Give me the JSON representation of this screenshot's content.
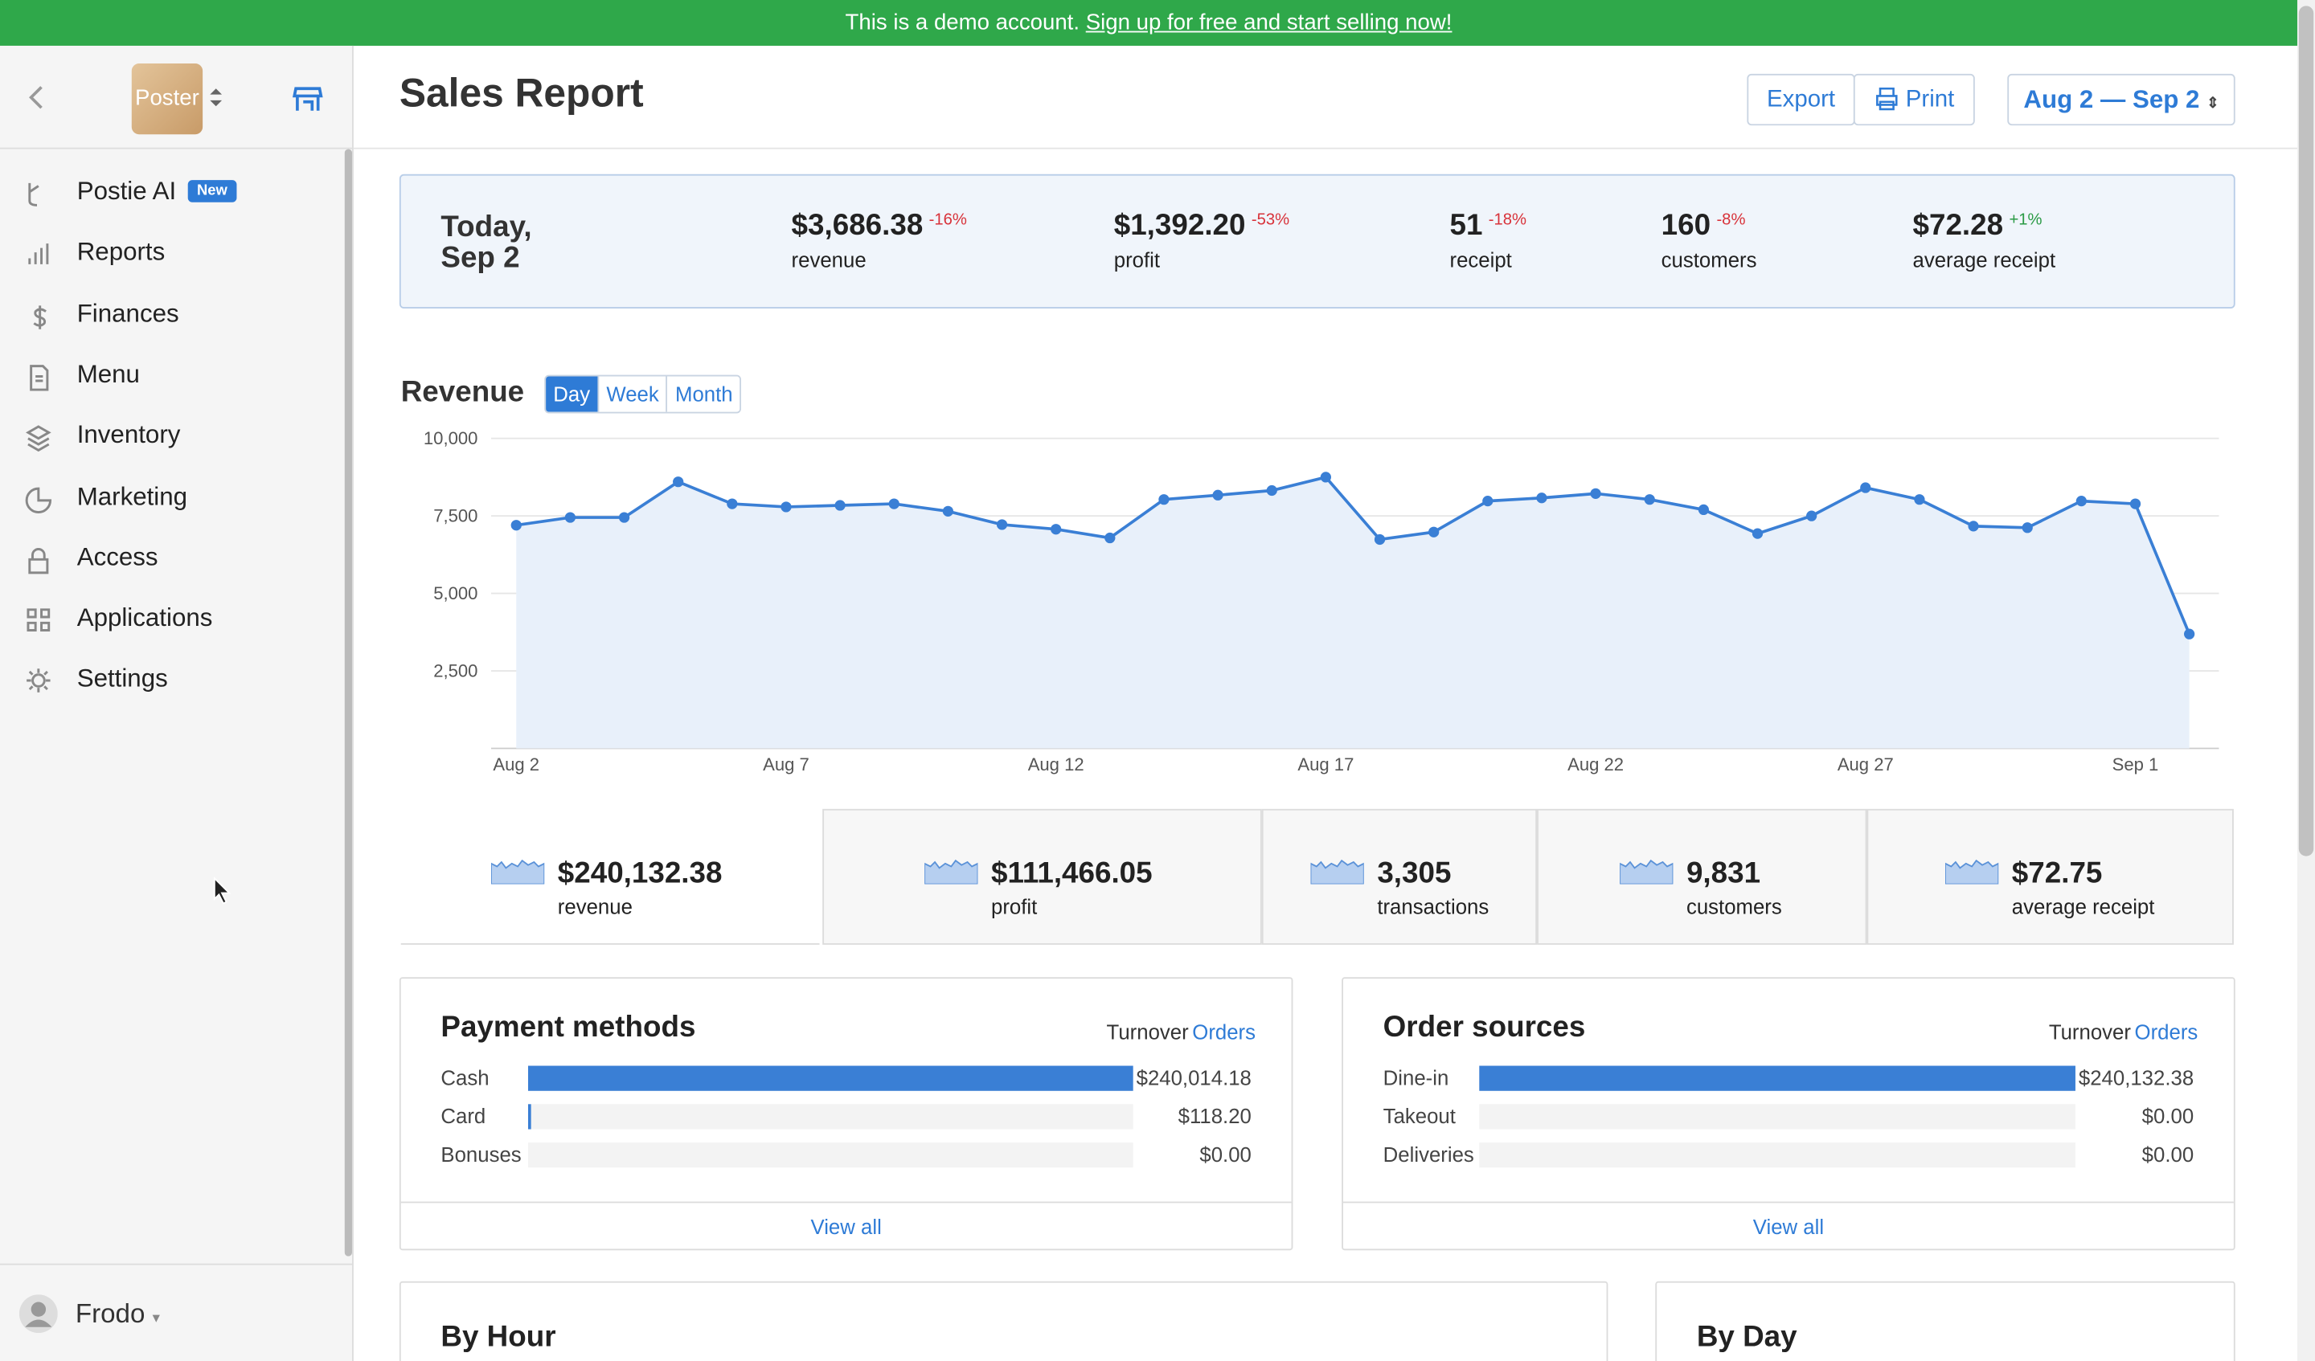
{
  "banner": {
    "text": "This is a demo account.",
    "link": "Sign up for free and start selling now!"
  },
  "sidebar": {
    "logo": "Poster",
    "menu": [
      {
        "label": "Postie AI",
        "badge": "New"
      },
      {
        "label": "Reports"
      },
      {
        "label": "Finances"
      },
      {
        "label": "Menu"
      },
      {
        "label": "Inventory"
      },
      {
        "label": "Marketing"
      },
      {
        "label": "Access"
      },
      {
        "label": "Applications"
      },
      {
        "label": "Settings"
      }
    ],
    "user": "Frodo"
  },
  "header": {
    "title": "Sales Report",
    "buttons": [
      "Export",
      "Print"
    ],
    "date_range": "Aug 2 — Sep 2"
  },
  "today": {
    "label": "Today,",
    "date": "Sep 2",
    "metrics": [
      {
        "value": "$3,686.38",
        "change": "-16%",
        "label": "revenue"
      },
      {
        "value": "$1,392.20",
        "change": "-53%",
        "label": "profit"
      },
      {
        "value": "51",
        "change": "-18%",
        "label": "receipt"
      },
      {
        "value": "160",
        "change": "-8%",
        "label": "customers"
      },
      {
        "value": "$72.28",
        "change": "+1%",
        "label": "average receipt"
      }
    ]
  },
  "chart_data": {
    "type": "line",
    "title": "Revenue",
    "tabs": [
      "Day",
      "Week",
      "Month"
    ],
    "categories": [
      "Aug 2",
      null,
      null,
      null,
      null,
      "Aug 7",
      null,
      null,
      null,
      null,
      "Aug 12",
      null,
      null,
      null,
      null,
      "Aug 17",
      null,
      null,
      null,
      null,
      "Aug 22",
      null,
      null,
      null,
      null,
      "Aug 27",
      null,
      null,
      null,
      null,
      "Sep 1",
      null
    ],
    "values": [
      7200,
      7450,
      7450,
      8600,
      7890,
      7790,
      7840,
      7890,
      7650,
      7220,
      7070,
      6790,
      8030,
      8170,
      8320,
      8750,
      6740,
      6980,
      7980,
      8080,
      8220,
      8030,
      7700,
      6930,
      7500,
      8410,
      8030,
      7170,
      7120,
      7980,
      7890,
      3690
    ],
    "color": "#3a7fd5",
    "ylim": [
      0,
      10000
    ],
    "yticks": [
      {
        "value": 2500,
        "label": "2,500"
      },
      {
        "value": 5000,
        "label": "5,000"
      },
      {
        "value": 7500,
        "label": "7,500"
      },
      {
        "value": 10000,
        "label": "10,000"
      }
    ],
    "grid": true
  },
  "totals": [
    {
      "value": "$240,132.38",
      "label": "revenue"
    },
    {
      "value": "$111,466.05",
      "label": "profit"
    },
    {
      "value": "3,305",
      "label": "transactions"
    },
    {
      "value": "9,831",
      "label": "customers"
    },
    {
      "value": "$72.75",
      "label": "average receipt"
    }
  ],
  "payment_methods": {
    "title": "Payment methods",
    "toggle": [
      "Turnover",
      "Orders"
    ],
    "categories": [
      "Cash",
      "Card",
      "Bonuses"
    ],
    "values": [
      240014.18,
      118.2,
      0
    ],
    "value_labels": [
      "$240,014.18",
      "$118.20",
      "$0.00"
    ],
    "link": "View all"
  },
  "order_sources": {
    "title": "Order sources",
    "toggle": [
      "Turnover",
      "Orders"
    ],
    "categories": [
      "Dine-in",
      "Takeout",
      "Deliveries"
    ],
    "values": [
      240132.38,
      0,
      0
    ],
    "value_labels": [
      "$240,132.38",
      "$0.00",
      "$0.00"
    ],
    "link": "View all"
  },
  "sections": [
    "By Hour",
    "By Day"
  ]
}
